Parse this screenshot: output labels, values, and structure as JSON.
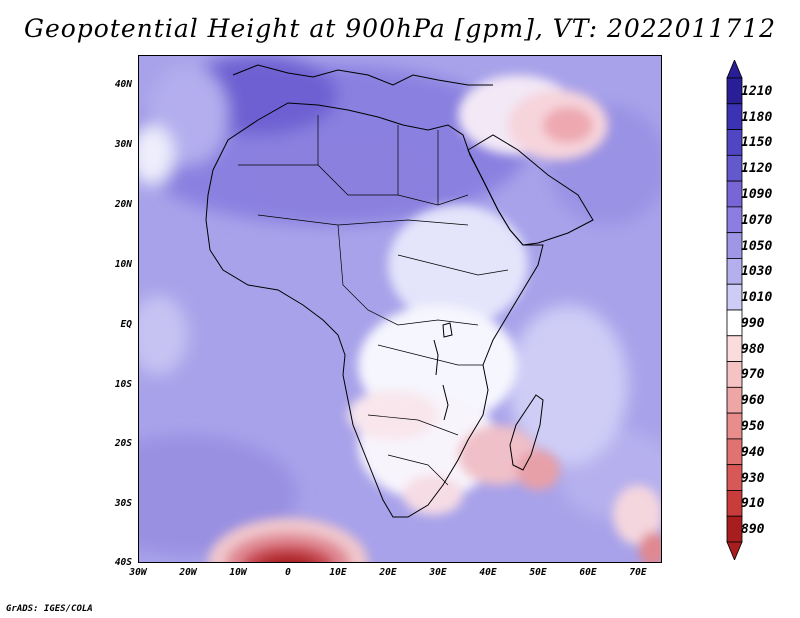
{
  "title": "Geopotential Height at 900hPa [gpm], VT: 2022011712",
  "credit": "GrADS: IGES/COLA",
  "lat_labels": [
    "40N",
    "30N",
    "20N",
    "10N",
    "EQ",
    "10S",
    "20S",
    "30S",
    "40S"
  ],
  "lon_labels": [
    "30W",
    "20W",
    "10W",
    "0",
    "10E",
    "20E",
    "30E",
    "40E",
    "50E",
    "60E",
    "70E"
  ],
  "colorbar": {
    "labels": [
      "1210",
      "1180",
      "1150",
      "1120",
      "1090",
      "1070",
      "1050",
      "1030",
      "1010",
      "990",
      "980",
      "970",
      "960",
      "950",
      "940",
      "930",
      "910",
      "890"
    ],
    "colors": [
      "#2a1e96",
      "#3c32b4",
      "#5046c3",
      "#6458cd",
      "#7866d6",
      "#8c7ee0",
      "#a096e6",
      "#b4b0ee",
      "#ccccf6",
      "#ffffff",
      "#fadcdc",
      "#f5c3c3",
      "#eea5a5",
      "#e88c8c",
      "#e07272",
      "#d85858",
      "#c83c3c",
      "#a81e1e"
    ]
  }
}
